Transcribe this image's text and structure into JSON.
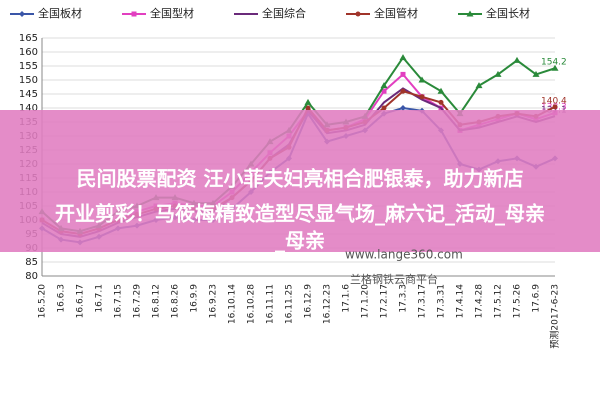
{
  "chart_data": {
    "type": "line",
    "categories": [
      "16.5.20",
      "16.6.3",
      "16.6.17",
      "16.7.1",
      "16.7.15",
      "16.7.29",
      "16.8.12",
      "16.8.26",
      "16.9.9",
      "16.9.23",
      "16.10.14",
      "16.10.28",
      "16.11.11",
      "16.11.25",
      "16.12.9",
      "16.12.23",
      "17.1.6",
      "17.1.20",
      "17.2.17",
      "17.3.3",
      "17.3.17",
      "17.3.31",
      "17.4.14",
      "17.4.28",
      "17.5.12",
      "17.5.26",
      "17.6.9",
      "预测2017-6-23"
    ],
    "ylim": [
      80,
      165
    ],
    "yticks": [
      80,
      85,
      90,
      95,
      100,
      105,
      110,
      115,
      120,
      125,
      130,
      135,
      140,
      145,
      150,
      155,
      160,
      165
    ],
    "grid": true,
    "series": [
      {
        "name": "全国板材",
        "color": "#3a56a8",
        "marker": "diamond",
        "label_last": false,
        "values": [
          97,
          93,
          92,
          94,
          97,
          98,
          100,
          101,
          100,
          100,
          104,
          110,
          117,
          122,
          138,
          128,
          130,
          132,
          138,
          140,
          139,
          132,
          120,
          118,
          121,
          122,
          119,
          122
        ]
      },
      {
        "name": "全国型材",
        "color": "#e23fc0",
        "marker": "square",
        "label_last": true,
        "values": [
          100,
          96,
          95,
          97,
          100,
          103,
          105,
          106,
          105,
          105,
          110,
          117,
          124,
          130,
          139,
          132,
          133,
          136,
          146,
          152,
          144,
          140,
          132,
          134,
          136,
          138,
          136,
          138.3
        ]
      },
      {
        "name": "全国综合",
        "color": "#6a2a7a",
        "marker": "none",
        "label_last": true,
        "values": [
          99,
          95,
          94,
          96,
          99,
          101,
          103,
          104,
          103,
          103,
          108,
          114,
          122,
          127,
          139,
          131,
          132,
          134,
          142,
          147,
          143,
          140,
          132,
          133,
          135,
          137,
          135,
          137.1
        ]
      },
      {
        "name": "全国管材",
        "color": "#a0342a",
        "marker": "circle",
        "label_last": true,
        "values": [
          100,
          96,
          95,
          97,
          100,
          102,
          104,
          105,
          104,
          104,
          108,
          114,
          122,
          126,
          140,
          132,
          133,
          135,
          140,
          146,
          144,
          142,
          134,
          135,
          137,
          138,
          137,
          140.4
        ]
      },
      {
        "name": "全国长材",
        "color": "#2a8a3a",
        "marker": "triangle",
        "label_last": true,
        "values": [
          103,
          97,
          96,
          98,
          103,
          105,
          108,
          108,
          106,
          106,
          112,
          120,
          128,
          132,
          142,
          134,
          135,
          137,
          148,
          158,
          150,
          146,
          138,
          148,
          152,
          157,
          152,
          154.2
        ]
      }
    ]
  },
  "overlay": {
    "lines": [
      "民间股票配资 汪小菲夫妇亮相合肥银泰，助力新店",
      "开业剪彩！马筱梅精致造型尽显气场_麻六记_活动_母亲",
      "_母亲"
    ],
    "watermark": "www.lange360.com",
    "platform": "兰格钢铁云商平台"
  }
}
